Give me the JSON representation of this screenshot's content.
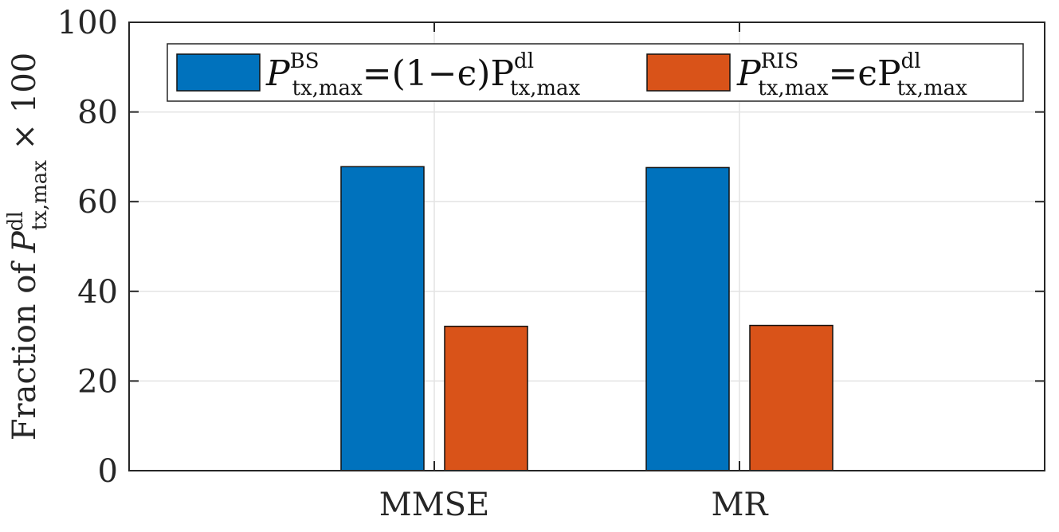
{
  "chart_data": {
    "type": "bar",
    "categories": [
      "MMSE",
      "MR"
    ],
    "series": [
      {
        "name": "P_tx,max^BS = (1−ϵ)P_tx,max^dl",
        "legend": {
          "main": "P",
          "sup": "BS",
          "sub": "tx,max",
          "eq": "=(1−ϵ)P",
          "sup2": "dl",
          "sub2": "tx,max"
        },
        "color": "#0072BD",
        "values": [
          67.8,
          67.6
        ]
      },
      {
        "name": "P_tx,max^RIS = ϵP_tx,max^dl",
        "legend": {
          "main": "P",
          "sup": "RIS",
          "sub": "tx,max",
          "eq": "=ϵP",
          "sup2": "dl",
          "sub2": "tx,max"
        },
        "color": "#D95319",
        "values": [
          32.2,
          32.4
        ]
      }
    ],
    "ylim": [
      0,
      100
    ],
    "yticks": [
      0,
      20,
      40,
      60,
      80,
      100
    ],
    "ylabel": {
      "prefix": "Fraction of ",
      "main": "P",
      "sup": "dl",
      "sub": "tx,max",
      "suffix": " × 100"
    },
    "xlabel": "",
    "grid": true,
    "legend_position": "top"
  }
}
